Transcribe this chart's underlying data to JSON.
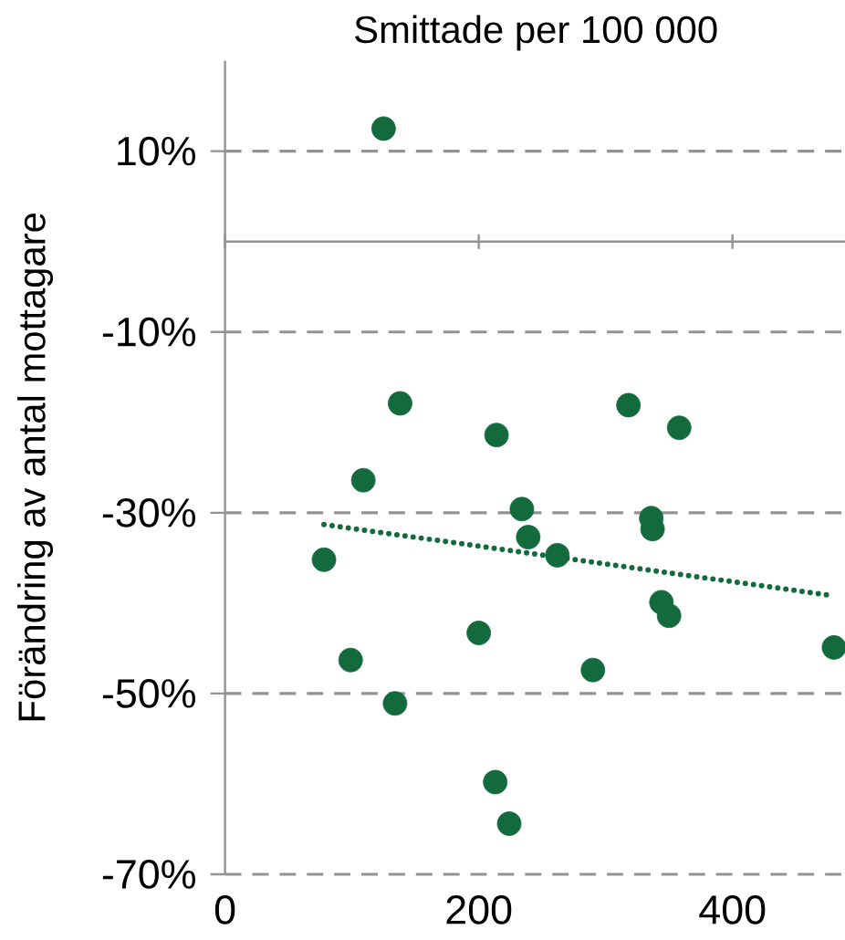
{
  "chart_data": {
    "type": "scatter",
    "xlabel": "Smittade per 100 000",
    "ylabel": "Förändring av antal mottagare",
    "xlim": [
      0,
      490
    ],
    "xticks": [
      0,
      200,
      400
    ],
    "ylim": [
      -70,
      20
    ],
    "yticks": [
      {
        "value": 10,
        "label": "10%"
      },
      {
        "value": -10,
        "label": "-10%"
      },
      {
        "value": -30,
        "label": "-30%"
      },
      {
        "value": -50,
        "label": "-50%"
      },
      {
        "value": -70,
        "label": "-70%"
      }
    ],
    "grid": "y",
    "series": [
      {
        "marker": "circle",
        "color": "#136b3d",
        "x": [
          125,
          138,
          214,
          318,
          358,
          109,
          234,
          336,
          337,
          239,
          262,
          78,
          344,
          350,
          200,
          480,
          99,
          290,
          134,
          213,
          224
        ],
        "values": [
          12.5,
          -17.9,
          -21.4,
          -18.1,
          -20.6,
          -26.4,
          -29.6,
          -30.6,
          -31.8,
          -32.7,
          -34.7,
          -35.2,
          -39.9,
          -41.4,
          -43.3,
          -44.9,
          -46.3,
          -47.4,
          -51.1,
          -59.8,
          -64.4
        ]
      },
      {
        "type": "line",
        "marker": "none",
        "line_style": "dotted",
        "color": "#136b3d",
        "x": [
          78,
          480
        ],
        "values": [
          -31.3,
          -39.2
        ]
      }
    ]
  }
}
